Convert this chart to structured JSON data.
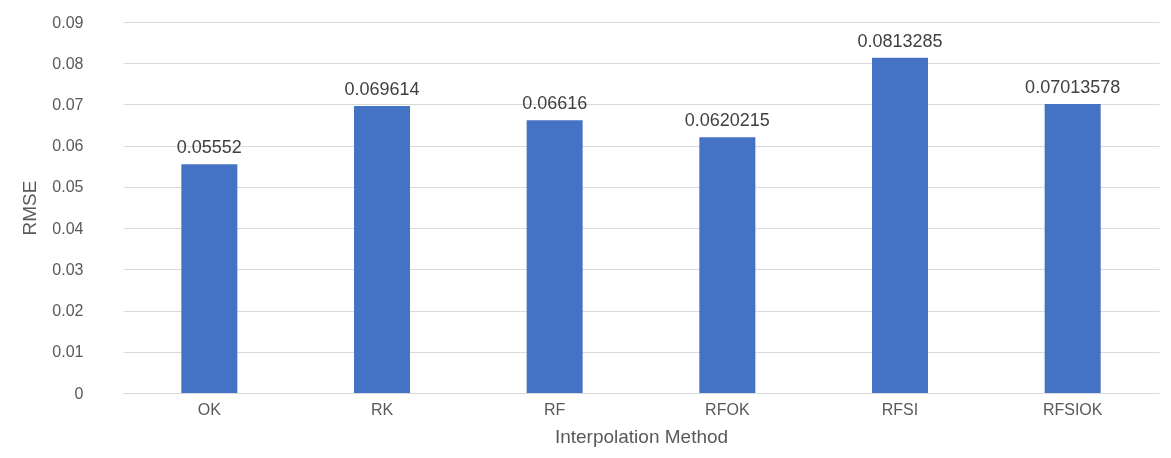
{
  "chart_data": {
    "type": "bar",
    "xlabel": "Interpolation Method",
    "ylabel": "RMSE",
    "categories": [
      "OK",
      "RK",
      "RF",
      "RFOK",
      "RFSI",
      "RFSIOK"
    ],
    "values": [
      0.05552,
      0.069614,
      0.06616,
      0.0620215,
      0.0813285,
      0.07013578
    ],
    "color": "#4472c4",
    "ylim": [
      0,
      0.09
    ],
    "yticks": [
      0,
      0.01,
      0.02,
      0.03,
      0.04,
      0.05,
      0.06,
      0.07,
      0.08,
      0.09
    ],
    "grid": "y",
    "data_labels": true
  }
}
